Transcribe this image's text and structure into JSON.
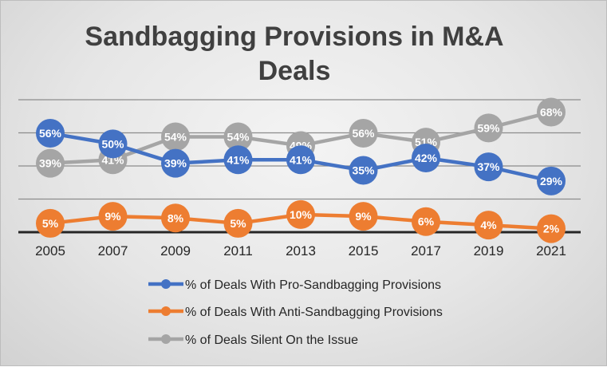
{
  "chart_data": {
    "type": "line",
    "title_lines": [
      "Sandbagging Provisions in M&A",
      "Deals"
    ],
    "xlabel": "",
    "ylabel": "",
    "categories": [
      "2005",
      "2007",
      "2009",
      "2011",
      "2013",
      "2015",
      "2017",
      "2019",
      "2021"
    ],
    "ylim": [
      0,
      75
    ],
    "grid": true,
    "legend_position": "bottom",
    "series": [
      {
        "name": "% of Deals With Pro-Sandbagging Provisions",
        "color": "#4472C4",
        "values": [
          56,
          50,
          39,
          41,
          41,
          35,
          42,
          37,
          29
        ],
        "labels": [
          "56%",
          "50%",
          "39%",
          "41%",
          "41%",
          "35%",
          "42%",
          "37%",
          "29%"
        ]
      },
      {
        "name": "% of Deals With Anti-Sandbagging Provisions",
        "color": "#ED7D31",
        "values": [
          5,
          9,
          8,
          5,
          10,
          9,
          6,
          4,
          2
        ],
        "labels": [
          "5%",
          "9%",
          "8%",
          "5%",
          "10%",
          "9%",
          "6%",
          "4%",
          "2%"
        ]
      },
      {
        "name": "% of Deals Silent On the Issue",
        "color": "#A5A5A5",
        "values": [
          39,
          41,
          54,
          54,
          49,
          56,
          51,
          59,
          68
        ],
        "labels": [
          "39%",
          "41%",
          "54%",
          "54%",
          "49%",
          "56%",
          "51%",
          "59%",
          "68%"
        ]
      }
    ]
  }
}
